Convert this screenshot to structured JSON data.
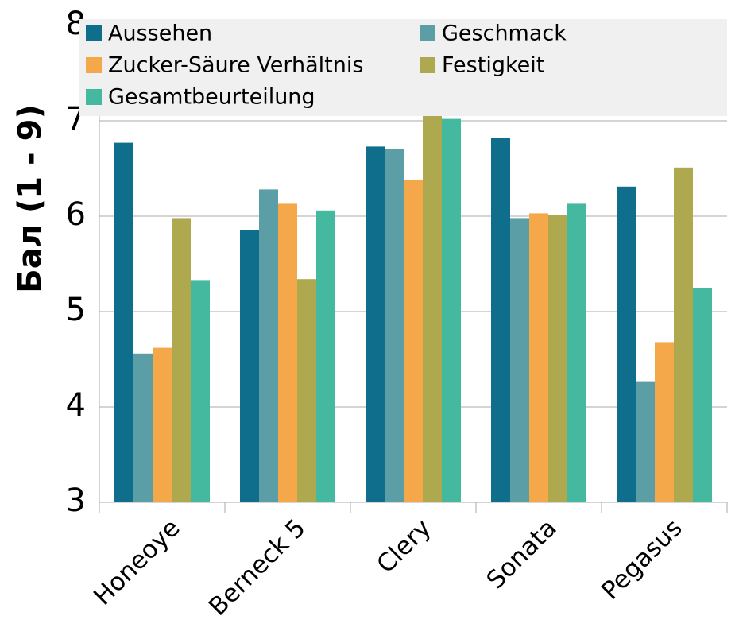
{
  "chart_data": {
    "type": "bar",
    "ylabel": "Бал (1 - 9)",
    "categories": [
      "Honeoye",
      "Berneck 5",
      "Clery",
      "Sonata",
      "Pegasus"
    ],
    "series": [
      {
        "name": "Aussehen",
        "color": "#0e6e8c",
        "values": [
          6.77,
          5.85,
          6.73,
          6.82,
          6.31
        ]
      },
      {
        "name": "Geschmack",
        "color": "#5b9ea6",
        "values": [
          4.56,
          6.28,
          6.7,
          5.98,
          4.27
        ]
      },
      {
        "name": "Zucker-Säure Verhältnis",
        "color": "#f5a84a",
        "values": [
          4.62,
          6.13,
          6.38,
          6.03,
          4.68
        ]
      },
      {
        "name": "Festigkeit",
        "color": "#aea94e",
        "values": [
          5.98,
          5.34,
          7.07,
          6.01,
          6.51
        ]
      },
      {
        "name": "Gesamtbeurteilung",
        "color": "#45b8a0",
        "values": [
          5.33,
          6.06,
          7.02,
          6.13,
          5.25
        ]
      }
    ],
    "ylim": [
      3,
      8
    ],
    "yticks": [
      3,
      4,
      5,
      6,
      7,
      8
    ],
    "grid": true,
    "legend": "top"
  }
}
